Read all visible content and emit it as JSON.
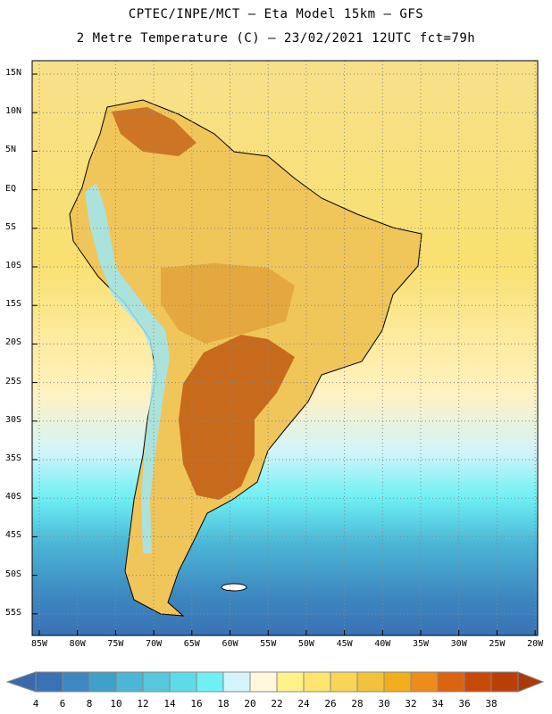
{
  "title_line1": "CPTEC/INPE/MCT –  Eta Model 15km – GFS",
  "title_line2": "2 Metre Temperature (C) – 23/02/2021 12UTC fct=79h",
  "lat_labels": [
    "15N",
    "10N",
    "5N",
    "EQ",
    "5S",
    "10S",
    "15S",
    "20S",
    "25S",
    "30S",
    "35S",
    "40S",
    "45S",
    "50S",
    "55S"
  ],
  "lon_labels": [
    "85W",
    "80W",
    "75W",
    "70W",
    "65W",
    "60W",
    "55W",
    "50W",
    "45W",
    "40W",
    "35W",
    "30W",
    "25W",
    "20W"
  ],
  "colorbar": {
    "labels": [
      "4",
      "6",
      "8",
      "10",
      "12",
      "14",
      "16",
      "18",
      "20",
      "22",
      "24",
      "26",
      "28",
      "30",
      "32",
      "34",
      "36",
      "38"
    ],
    "colors": [
      "#3a72b4",
      "#3d88c0",
      "#40a0c8",
      "#4cb6d6",
      "#55c8de",
      "#5edbe8",
      "#6ef0f4",
      "#d2f4fa",
      "#fff8dc",
      "#fff28a",
      "#fde56e",
      "#f8d558",
      "#f2c23c",
      "#f2ad1a",
      "#ec8c1c",
      "#dc6410",
      "#c84a08",
      "#b84008"
    ]
  },
  "colors": {
    "ocean_north": "#f7e27a",
    "ocean_mid": "#fff8dc",
    "ocean_south": "#4cb6d6",
    "ocean_far_south": "#3a72b4",
    "land": "#f0c050",
    "hot_land": "#c86418"
  }
}
